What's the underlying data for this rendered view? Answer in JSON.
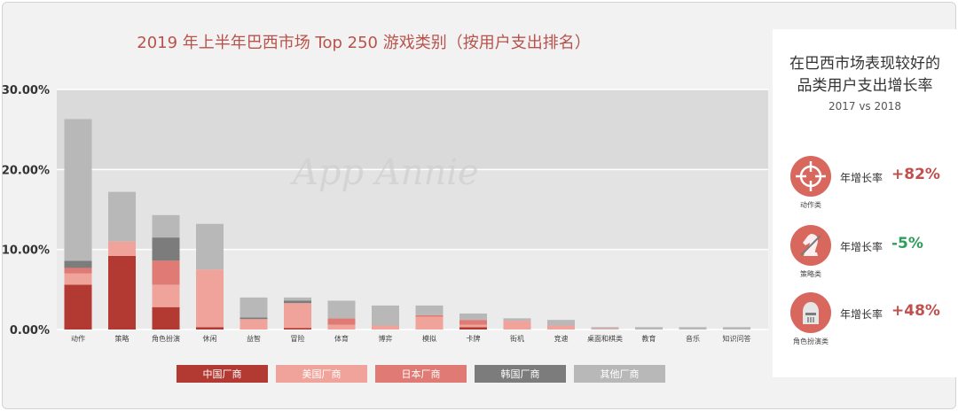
{
  "colors": {
    "china": "#b23a33",
    "usa": "#efa39a",
    "japan": "#e07a74",
    "korea": "#7c7c7c",
    "other": "#b8b8b8",
    "title": "#b9524a",
    "positive": "#c0504d",
    "negative": "#2e9e5b"
  },
  "chart_data": {
    "type": "bar",
    "stacked": true,
    "title": "2019 年上半年巴西市场 Top 250 游戏类别（按用户支出排名）",
    "watermark": "App Annie",
    "categories": [
      "动作",
      "策略",
      "角色扮演",
      "休闲",
      "益智",
      "冒险",
      "体育",
      "博弈",
      "模拟",
      "卡牌",
      "街机",
      "竞速",
      "桌面和棋类",
      "教育",
      "音乐",
      "知识问答"
    ],
    "ylim": [
      0,
      30
    ],
    "yticks": [
      "0.00%",
      "10.00%",
      "20.00%",
      "30.00%"
    ],
    "grid": true,
    "legend_position": "bottom",
    "series": [
      {
        "name": "中国厂商",
        "color_key": "china",
        "values": [
          5.6,
          9.2,
          2.8,
          0.3,
          0.0,
          0.2,
          0.0,
          0.0,
          0.0,
          0.3,
          0.0,
          0.0,
          0.0,
          0.0,
          0.0,
          0.0
        ]
      },
      {
        "name": "美国厂商",
        "color_key": "usa",
        "values": [
          1.4,
          1.8,
          2.8,
          7.2,
          1.3,
          3.1,
          0.6,
          0.5,
          1.6,
          0.3,
          1.1,
          0.5,
          0.1,
          0.0,
          0.0,
          0.0
        ]
      },
      {
        "name": "日本厂商",
        "color_key": "japan",
        "values": [
          0.7,
          0.0,
          3.0,
          0.0,
          0.0,
          0.0,
          0.8,
          0.0,
          0.2,
          0.6,
          0.0,
          0.0,
          0.0,
          0.0,
          0.0,
          0.0
        ]
      },
      {
        "name": "韩国厂商",
        "color_key": "korea",
        "values": [
          0.9,
          0.0,
          2.9,
          0.0,
          0.2,
          0.3,
          0.0,
          0.0,
          0.0,
          0.0,
          0.0,
          0.0,
          0.0,
          0.0,
          0.0,
          0.0
        ]
      },
      {
        "name": "其他厂商",
        "color_key": "other",
        "values": [
          17.7,
          6.2,
          2.8,
          5.7,
          2.5,
          0.4,
          2.2,
          2.5,
          1.2,
          0.8,
          0.3,
          0.7,
          0.2,
          0.3,
          0.3,
          0.3
        ]
      }
    ]
  },
  "side_panel": {
    "title_line1": "在巴西市场表现较好的",
    "title_line2": "品类用户支出增长率",
    "subtitle": "2017 vs 2018",
    "metrics": [
      {
        "icon": "crosshair-icon",
        "category": "动作类",
        "label": "年增长率",
        "value": "+82%",
        "trend": "positive"
      },
      {
        "icon": "chess-knight-icon",
        "category": "策略类",
        "label": "年增长率",
        "value": "-5%",
        "trend": "negative"
      },
      {
        "icon": "knight-helmet-icon",
        "category": "角色扮演类",
        "label": "年增长率",
        "value": "+48%",
        "trend": "positive"
      }
    ]
  }
}
